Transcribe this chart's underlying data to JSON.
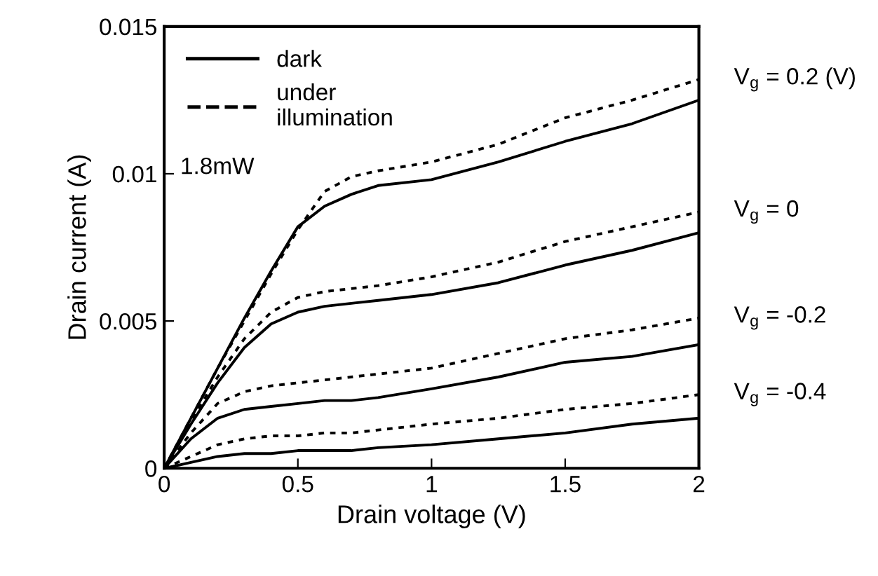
{
  "chart_data": {
    "type": "line",
    "xlabel": "Drain voltage (V)",
    "ylabel": "Drain current (A)",
    "x": [
      0,
      0.1,
      0.2,
      0.3,
      0.4,
      0.5,
      0.6,
      0.7,
      0.8,
      1.0,
      1.25,
      1.5,
      1.75,
      2.0
    ],
    "xlim": [
      0,
      2
    ],
    "xticks": [
      0,
      0.5,
      1,
      1.5,
      2
    ],
    "ylim": [
      0,
      0.015
    ],
    "yticks": [
      0,
      0.005,
      0.01,
      0.015
    ],
    "grid": false,
    "legend": "top left",
    "marker": "none",
    "series": [
      {
        "name": "dark",
        "color": "#000000",
        "line_style": "solid",
        "values": [
          0,
          0.0017,
          0.0034,
          0.0051,
          0.0067,
          0.0082,
          0.0089,
          0.0093,
          0.0096,
          0.0098,
          0.0104,
          0.0111,
          0.0117,
          0.0125
        ]
      },
      {
        "name": "under\nillumination",
        "color": "#000000",
        "line_style": "dotted",
        "values": [
          0,
          0.0017,
          0.0034,
          0.005,
          0.0066,
          0.0081,
          0.0094,
          0.0099,
          0.0101,
          0.0104,
          0.011,
          0.0119,
          0.0125,
          0.0132
        ]
      },
      {
        "color": "#000000",
        "line_style": "solid",
        "values": [
          0,
          0.0015,
          0.0029,
          0.0041,
          0.0049,
          0.0053,
          0.0055,
          0.0056,
          0.0057,
          0.0059,
          0.0063,
          0.0069,
          0.0074,
          0.008
        ]
      },
      {
        "color": "#000000",
        "line_style": "dotted",
        "values": [
          0,
          0.0016,
          0.0031,
          0.0044,
          0.0053,
          0.0058,
          0.006,
          0.0061,
          0.0062,
          0.0065,
          0.007,
          0.0077,
          0.0082,
          0.0087
        ]
      },
      {
        "color": "#000000",
        "line_style": "solid",
        "values": [
          0,
          0.001,
          0.0017,
          0.002,
          0.0021,
          0.0022,
          0.0023,
          0.0023,
          0.0024,
          0.0027,
          0.0031,
          0.0036,
          0.0038,
          0.0042
        ]
      },
      {
        "color": "#000000",
        "line_style": "dotted",
        "values": [
          0,
          0.0012,
          0.0022,
          0.0026,
          0.0028,
          0.0029,
          0.003,
          0.0031,
          0.0032,
          0.0034,
          0.0039,
          0.0044,
          0.0047,
          0.0051
        ]
      },
      {
        "color": "#000000",
        "line_style": "solid",
        "values": [
          0,
          0.0002,
          0.0004,
          0.0005,
          0.0005,
          0.0006,
          0.0006,
          0.0006,
          0.0007,
          0.0008,
          0.001,
          0.0012,
          0.0015,
          0.0017
        ]
      },
      {
        "color": "#000000",
        "line_style": "dotted",
        "values": [
          0,
          0.0004,
          0.0008,
          0.001,
          0.0011,
          0.0011,
          0.0012,
          0.0012,
          0.0013,
          0.0015,
          0.0017,
          0.002,
          0.0022,
          0.0025
        ]
      }
    ],
    "annotations": [
      "V$_{g}$ = 0.2 (V)",
      "V$_{g}$ = 0",
      "V$_{g}$ = -0.2",
      "V$_{g}$ = -0.4",
      "1.8mW"
    ]
  }
}
